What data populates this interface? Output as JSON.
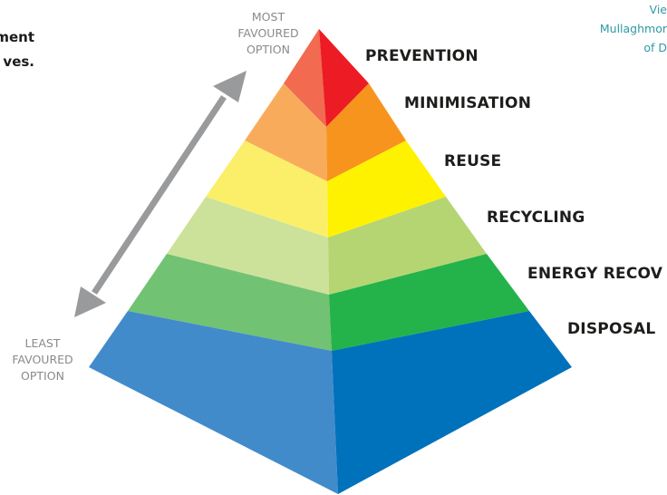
{
  "top_left_fragment": {
    "lines": [
      "ment",
      "ves."
    ]
  },
  "top_right_fragment": {
    "lines": [
      "Vie",
      "Mullaghmor",
      "of D"
    ]
  },
  "axis": {
    "most_favoured": [
      "MOST",
      "FAVOURED",
      "OPTION"
    ],
    "least_favoured": [
      "LEAST",
      "FAVOURED",
      "OPTION"
    ]
  },
  "tiers": [
    {
      "label": "PREVENTION",
      "color_left": "#f26a4f",
      "color_right": "#ed1c24"
    },
    {
      "label": "MINIMISATION",
      "color_left": "#f9ab5c",
      "color_right": "#f7941d"
    },
    {
      "label": "REUSE",
      "color_left": "#fbef6a",
      "color_right": "#fff200"
    },
    {
      "label": "RECYCLING",
      "color_left": "#cce29a",
      "color_right": "#b5d573"
    },
    {
      "label": "ENERGY RECOV",
      "color_left": "#72c274",
      "color_right": "#24b24b"
    },
    {
      "label": "DISPOSAL",
      "color_left": "#428bca",
      "color_right": "#0071bb"
    }
  ],
  "arrow_color": "#999a9c"
}
